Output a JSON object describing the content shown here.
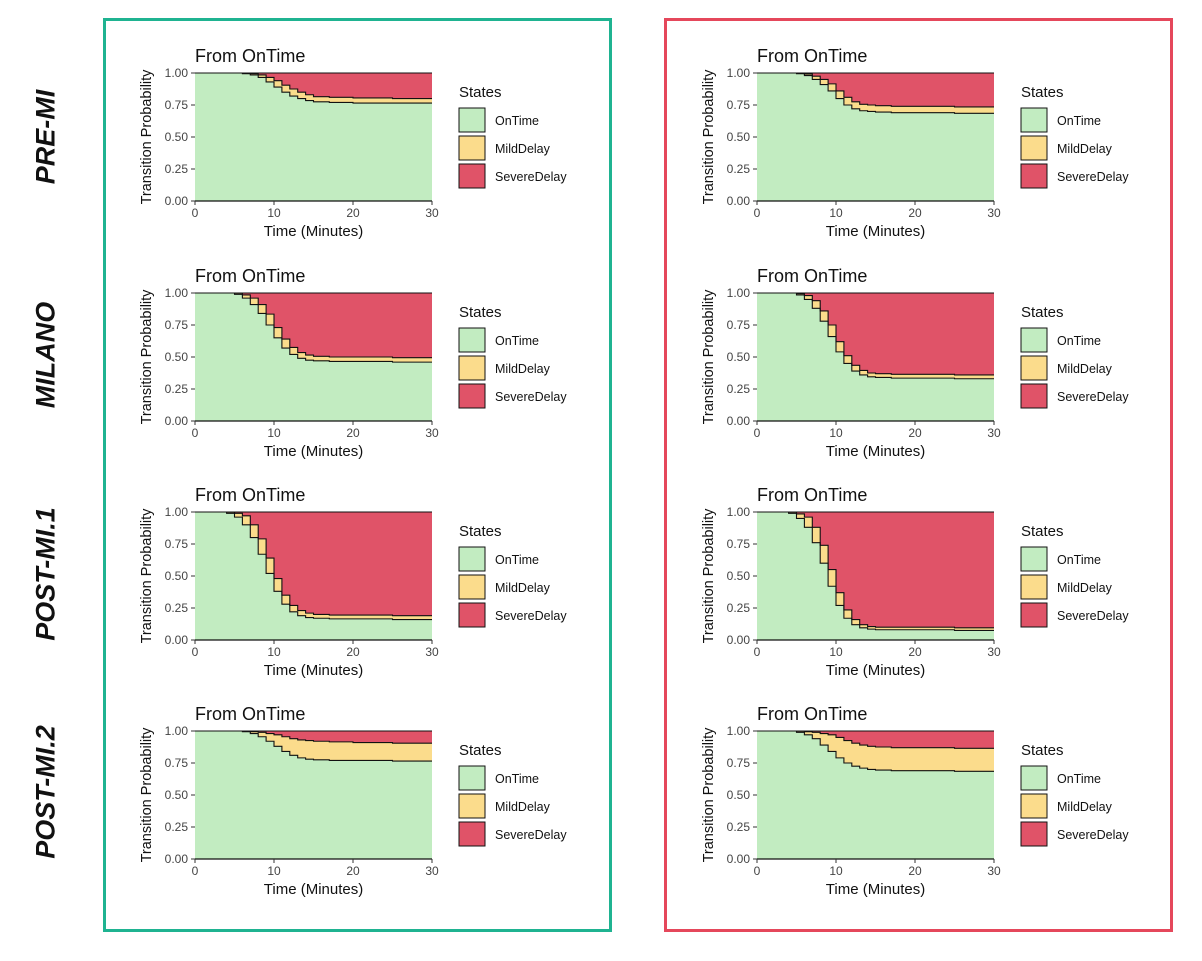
{
  "colors": {
    "left_border": "#1fb391",
    "right_border": "#e5475b",
    "OnTime": "#c2ecc1",
    "MildDelay": "#fbdc8c",
    "SevereDelay": "#e05368",
    "outline": "#111111"
  },
  "row_labels": [
    "PRE-MI",
    "MILANO",
    "POST-MI.1",
    "POST-MI.2"
  ],
  "chart_data": [
    {
      "type": "area",
      "column": "left",
      "row": "PRE-MI",
      "title": "From OnTime",
      "xlabel": "Time (Minutes)",
      "ylabel": "Transition Probability",
      "xlim": [
        0,
        30
      ],
      "ylim": [
        0,
        1
      ],
      "x_ticks": [
        "0",
        "10",
        "20",
        "30"
      ],
      "y_ticks": [
        "0.00",
        "0.25",
        "0.50",
        "0.75",
        "1.00"
      ],
      "legend_title": "States",
      "legend": [
        "OnTime",
        "MildDelay",
        "SevereDelay"
      ],
      "x": [
        0,
        5,
        6,
        7,
        8,
        9,
        10,
        11,
        12,
        13,
        14,
        15,
        17,
        20,
        25,
        30
      ],
      "series": [
        {
          "name": "OnTime",
          "values": [
            1.0,
            1.0,
            0.995,
            0.985,
            0.965,
            0.93,
            0.89,
            0.85,
            0.82,
            0.8,
            0.785,
            0.775,
            0.77,
            0.765,
            0.765,
            0.765
          ]
        },
        {
          "name": "MildDelay",
          "values": [
            0,
            0,
            0.004,
            0.01,
            0.02,
            0.035,
            0.05,
            0.055,
            0.055,
            0.05,
            0.045,
            0.04,
            0.04,
            0.04,
            0.035,
            0.035
          ]
        },
        {
          "name": "SevereDelay",
          "values": [
            0,
            0,
            0.001,
            0.005,
            0.015,
            0.035,
            0.06,
            0.095,
            0.125,
            0.15,
            0.17,
            0.185,
            0.19,
            0.195,
            0.2,
            0.2
          ]
        }
      ]
    },
    {
      "type": "area",
      "column": "right",
      "row": "PRE-MI",
      "title": "From OnTime",
      "xlabel": "Time (Minutes)",
      "ylabel": "Transition Probability",
      "xlim": [
        0,
        30
      ],
      "ylim": [
        0,
        1
      ],
      "x_ticks": [
        "0",
        "10",
        "20",
        "30"
      ],
      "y_ticks": [
        "0.00",
        "0.25",
        "0.50",
        "0.75",
        "1.00"
      ],
      "legend_title": "States",
      "legend": [
        "OnTime",
        "MildDelay",
        "SevereDelay"
      ],
      "x": [
        0,
        4,
        5,
        6,
        7,
        8,
        9,
        10,
        11,
        12,
        13,
        14,
        15,
        17,
        20,
        25,
        30
      ],
      "series": [
        {
          "name": "OnTime",
          "values": [
            1.0,
            1.0,
            0.995,
            0.98,
            0.95,
            0.91,
            0.86,
            0.8,
            0.75,
            0.72,
            0.705,
            0.7,
            0.695,
            0.69,
            0.69,
            0.685,
            0.685
          ]
        },
        {
          "name": "MildDelay",
          "values": [
            0,
            0,
            0.004,
            0.012,
            0.025,
            0.04,
            0.055,
            0.06,
            0.06,
            0.055,
            0.05,
            0.05,
            0.05,
            0.05,
            0.05,
            0.05,
            0.05
          ]
        },
        {
          "name": "SevereDelay",
          "values": [
            0,
            0,
            0.001,
            0.008,
            0.025,
            0.05,
            0.085,
            0.14,
            0.19,
            0.225,
            0.245,
            0.25,
            0.255,
            0.26,
            0.26,
            0.265,
            0.265
          ]
        }
      ]
    },
    {
      "type": "area",
      "column": "left",
      "row": "MILANO",
      "title": "From OnTime",
      "xlabel": "Time (Minutes)",
      "ylabel": "Transition Probability",
      "xlim": [
        0,
        30
      ],
      "ylim": [
        0,
        1
      ],
      "x_ticks": [
        "0",
        "10",
        "20",
        "30"
      ],
      "y_ticks": [
        "0.00",
        "0.25",
        "0.50",
        "0.75",
        "1.00"
      ],
      "legend_title": "States",
      "legend": [
        "OnTime",
        "MildDelay",
        "SevereDelay"
      ],
      "x": [
        0,
        4,
        5,
        6,
        7,
        8,
        9,
        10,
        11,
        12,
        13,
        14,
        15,
        17,
        20,
        25,
        30
      ],
      "series": [
        {
          "name": "OnTime",
          "values": [
            1.0,
            1.0,
            0.99,
            0.96,
            0.91,
            0.84,
            0.75,
            0.65,
            0.57,
            0.52,
            0.49,
            0.475,
            0.47,
            0.465,
            0.465,
            0.46,
            0.46
          ]
        },
        {
          "name": "MildDelay",
          "values": [
            0,
            0,
            0.008,
            0.025,
            0.05,
            0.07,
            0.085,
            0.08,
            0.07,
            0.055,
            0.045,
            0.04,
            0.035,
            0.035,
            0.035,
            0.035,
            0.035
          ]
        },
        {
          "name": "SevereDelay",
          "values": [
            0,
            0,
            0.002,
            0.015,
            0.04,
            0.09,
            0.165,
            0.27,
            0.36,
            0.425,
            0.465,
            0.485,
            0.495,
            0.5,
            0.5,
            0.505,
            0.505
          ]
        }
      ]
    },
    {
      "type": "area",
      "column": "right",
      "row": "MILANO",
      "title": "From OnTime",
      "xlabel": "Time (Minutes)",
      "ylabel": "Transition Probability",
      "xlim": [
        0,
        30
      ],
      "ylim": [
        0,
        1
      ],
      "x_ticks": [
        "0",
        "10",
        "20",
        "30"
      ],
      "y_ticks": [
        "0.00",
        "0.25",
        "0.50",
        "0.75",
        "1.00"
      ],
      "legend_title": "States",
      "legend": [
        "OnTime",
        "MildDelay",
        "SevereDelay"
      ],
      "x": [
        0,
        4,
        5,
        6,
        7,
        8,
        9,
        10,
        11,
        12,
        13,
        14,
        15,
        17,
        20,
        25,
        30
      ],
      "series": [
        {
          "name": "OnTime",
          "values": [
            1.0,
            1.0,
            0.985,
            0.95,
            0.88,
            0.78,
            0.66,
            0.54,
            0.45,
            0.39,
            0.36,
            0.345,
            0.34,
            0.335,
            0.335,
            0.33,
            0.33
          ]
        },
        {
          "name": "MildDelay",
          "values": [
            0,
            0,
            0.01,
            0.03,
            0.06,
            0.08,
            0.09,
            0.08,
            0.06,
            0.045,
            0.035,
            0.03,
            0.03,
            0.03,
            0.03,
            0.03,
            0.03
          ]
        },
        {
          "name": "SevereDelay",
          "values": [
            0,
            0,
            0.005,
            0.02,
            0.06,
            0.14,
            0.25,
            0.38,
            0.49,
            0.565,
            0.605,
            0.625,
            0.63,
            0.635,
            0.635,
            0.64,
            0.64
          ]
        }
      ]
    },
    {
      "type": "area",
      "column": "left",
      "row": "POST-MI.1",
      "title": "From OnTime",
      "xlabel": "Time (Minutes)",
      "ylabel": "Transition Probability",
      "xlim": [
        0,
        30
      ],
      "ylim": [
        0,
        1
      ],
      "x_ticks": [
        "0",
        "10",
        "20",
        "30"
      ],
      "y_ticks": [
        "0.00",
        "0.25",
        "0.50",
        "0.75",
        "1.00"
      ],
      "legend_title": "States",
      "legend": [
        "OnTime",
        "MildDelay",
        "SevereDelay"
      ],
      "x": [
        0,
        3,
        4,
        5,
        6,
        7,
        8,
        9,
        10,
        11,
        12,
        13,
        14,
        15,
        17,
        20,
        25,
        30
      ],
      "series": [
        {
          "name": "OnTime",
          "values": [
            1.0,
            1.0,
            0.99,
            0.96,
            0.9,
            0.8,
            0.67,
            0.52,
            0.38,
            0.28,
            0.22,
            0.19,
            0.175,
            0.17,
            0.165,
            0.165,
            0.16,
            0.16
          ]
        },
        {
          "name": "MildDelay",
          "values": [
            0,
            0,
            0.008,
            0.03,
            0.07,
            0.1,
            0.12,
            0.12,
            0.1,
            0.07,
            0.05,
            0.04,
            0.035,
            0.03,
            0.03,
            0.03,
            0.03,
            0.03
          ]
        },
        {
          "name": "SevereDelay",
          "values": [
            0,
            0,
            0.002,
            0.01,
            0.03,
            0.1,
            0.21,
            0.36,
            0.52,
            0.65,
            0.73,
            0.77,
            0.79,
            0.8,
            0.805,
            0.805,
            0.81,
            0.81
          ]
        }
      ]
    },
    {
      "type": "area",
      "column": "right",
      "row": "POST-MI.1",
      "title": "From OnTime",
      "xlabel": "Time (Minutes)",
      "ylabel": "Transition Probability",
      "xlim": [
        0,
        30
      ],
      "ylim": [
        0,
        1
      ],
      "x_ticks": [
        "0",
        "10",
        "20",
        "30"
      ],
      "y_ticks": [
        "0.00",
        "0.25",
        "0.50",
        "0.75",
        "1.00"
      ],
      "legend_title": "States",
      "legend": [
        "OnTime",
        "MildDelay",
        "SevereDelay"
      ],
      "x": [
        0,
        3,
        4,
        5,
        6,
        7,
        8,
        9,
        10,
        11,
        12,
        13,
        14,
        15,
        17,
        20,
        25,
        30
      ],
      "series": [
        {
          "name": "OnTime",
          "values": [
            1.0,
            1.0,
            0.99,
            0.95,
            0.88,
            0.76,
            0.6,
            0.42,
            0.27,
            0.17,
            0.12,
            0.095,
            0.085,
            0.08,
            0.08,
            0.08,
            0.075,
            0.075
          ]
        },
        {
          "name": "MildDelay",
          "values": [
            0,
            0,
            0.008,
            0.035,
            0.08,
            0.12,
            0.14,
            0.13,
            0.1,
            0.065,
            0.04,
            0.025,
            0.02,
            0.02,
            0.02,
            0.02,
            0.02,
            0.02
          ]
        },
        {
          "name": "SevereDelay",
          "values": [
            0,
            0,
            0.002,
            0.015,
            0.04,
            0.12,
            0.26,
            0.45,
            0.63,
            0.765,
            0.84,
            0.88,
            0.895,
            0.9,
            0.9,
            0.9,
            0.905,
            0.905
          ]
        }
      ]
    },
    {
      "type": "area",
      "column": "left",
      "row": "POST-MI.2",
      "title": "From OnTime",
      "xlabel": "Time (Minutes)",
      "ylabel": "Transition Probability",
      "xlim": [
        0,
        30
      ],
      "ylim": [
        0,
        1
      ],
      "x_ticks": [
        "0",
        "10",
        "20",
        "30"
      ],
      "y_ticks": [
        "0.00",
        "0.25",
        "0.50",
        "0.75",
        "1.00"
      ],
      "legend_title": "States",
      "legend": [
        "OnTime",
        "MildDelay",
        "SevereDelay"
      ],
      "x": [
        0,
        5,
        6,
        7,
        8,
        9,
        10,
        11,
        12,
        13,
        14,
        15,
        17,
        20,
        25,
        30
      ],
      "series": [
        {
          "name": "OnTime",
          "values": [
            1.0,
            1.0,
            0.995,
            0.98,
            0.955,
            0.92,
            0.88,
            0.84,
            0.81,
            0.79,
            0.78,
            0.775,
            0.77,
            0.77,
            0.765,
            0.765
          ]
        },
        {
          "name": "MildDelay",
          "values": [
            0,
            0,
            0.004,
            0.015,
            0.035,
            0.06,
            0.09,
            0.115,
            0.13,
            0.14,
            0.145,
            0.145,
            0.145,
            0.14,
            0.14,
            0.14
          ]
        },
        {
          "name": "SevereDelay",
          "values": [
            0,
            0,
            0.001,
            0.005,
            0.01,
            0.02,
            0.03,
            0.045,
            0.06,
            0.07,
            0.075,
            0.08,
            0.085,
            0.09,
            0.095,
            0.095
          ]
        }
      ]
    },
    {
      "type": "area",
      "column": "right",
      "row": "POST-MI.2",
      "title": "From OnTime",
      "xlabel": "Time (Minutes)",
      "ylabel": "Transition Probability",
      "xlim": [
        0,
        30
      ],
      "ylim": [
        0,
        1
      ],
      "x_ticks": [
        "0",
        "10",
        "20",
        "30"
      ],
      "y_ticks": [
        "0.00",
        "0.25",
        "0.50",
        "0.75",
        "1.00"
      ],
      "legend_title": "States",
      "legend": [
        "OnTime",
        "MildDelay",
        "SevereDelay"
      ],
      "x": [
        0,
        4,
        5,
        6,
        7,
        8,
        9,
        10,
        11,
        12,
        13,
        14,
        15,
        17,
        20,
        25,
        30
      ],
      "series": [
        {
          "name": "OnTime",
          "values": [
            1.0,
            1.0,
            0.99,
            0.97,
            0.94,
            0.89,
            0.84,
            0.79,
            0.75,
            0.725,
            0.71,
            0.7,
            0.695,
            0.69,
            0.69,
            0.685,
            0.685
          ]
        },
        {
          "name": "MildDelay",
          "values": [
            0,
            0,
            0.008,
            0.025,
            0.05,
            0.09,
            0.13,
            0.16,
            0.175,
            0.18,
            0.18,
            0.18,
            0.18,
            0.18,
            0.18,
            0.18,
            0.18
          ]
        },
        {
          "name": "SevereDelay",
          "values": [
            0,
            0,
            0.002,
            0.005,
            0.01,
            0.02,
            0.03,
            0.05,
            0.075,
            0.095,
            0.11,
            0.12,
            0.125,
            0.13,
            0.13,
            0.135,
            0.135
          ]
        }
      ]
    }
  ]
}
